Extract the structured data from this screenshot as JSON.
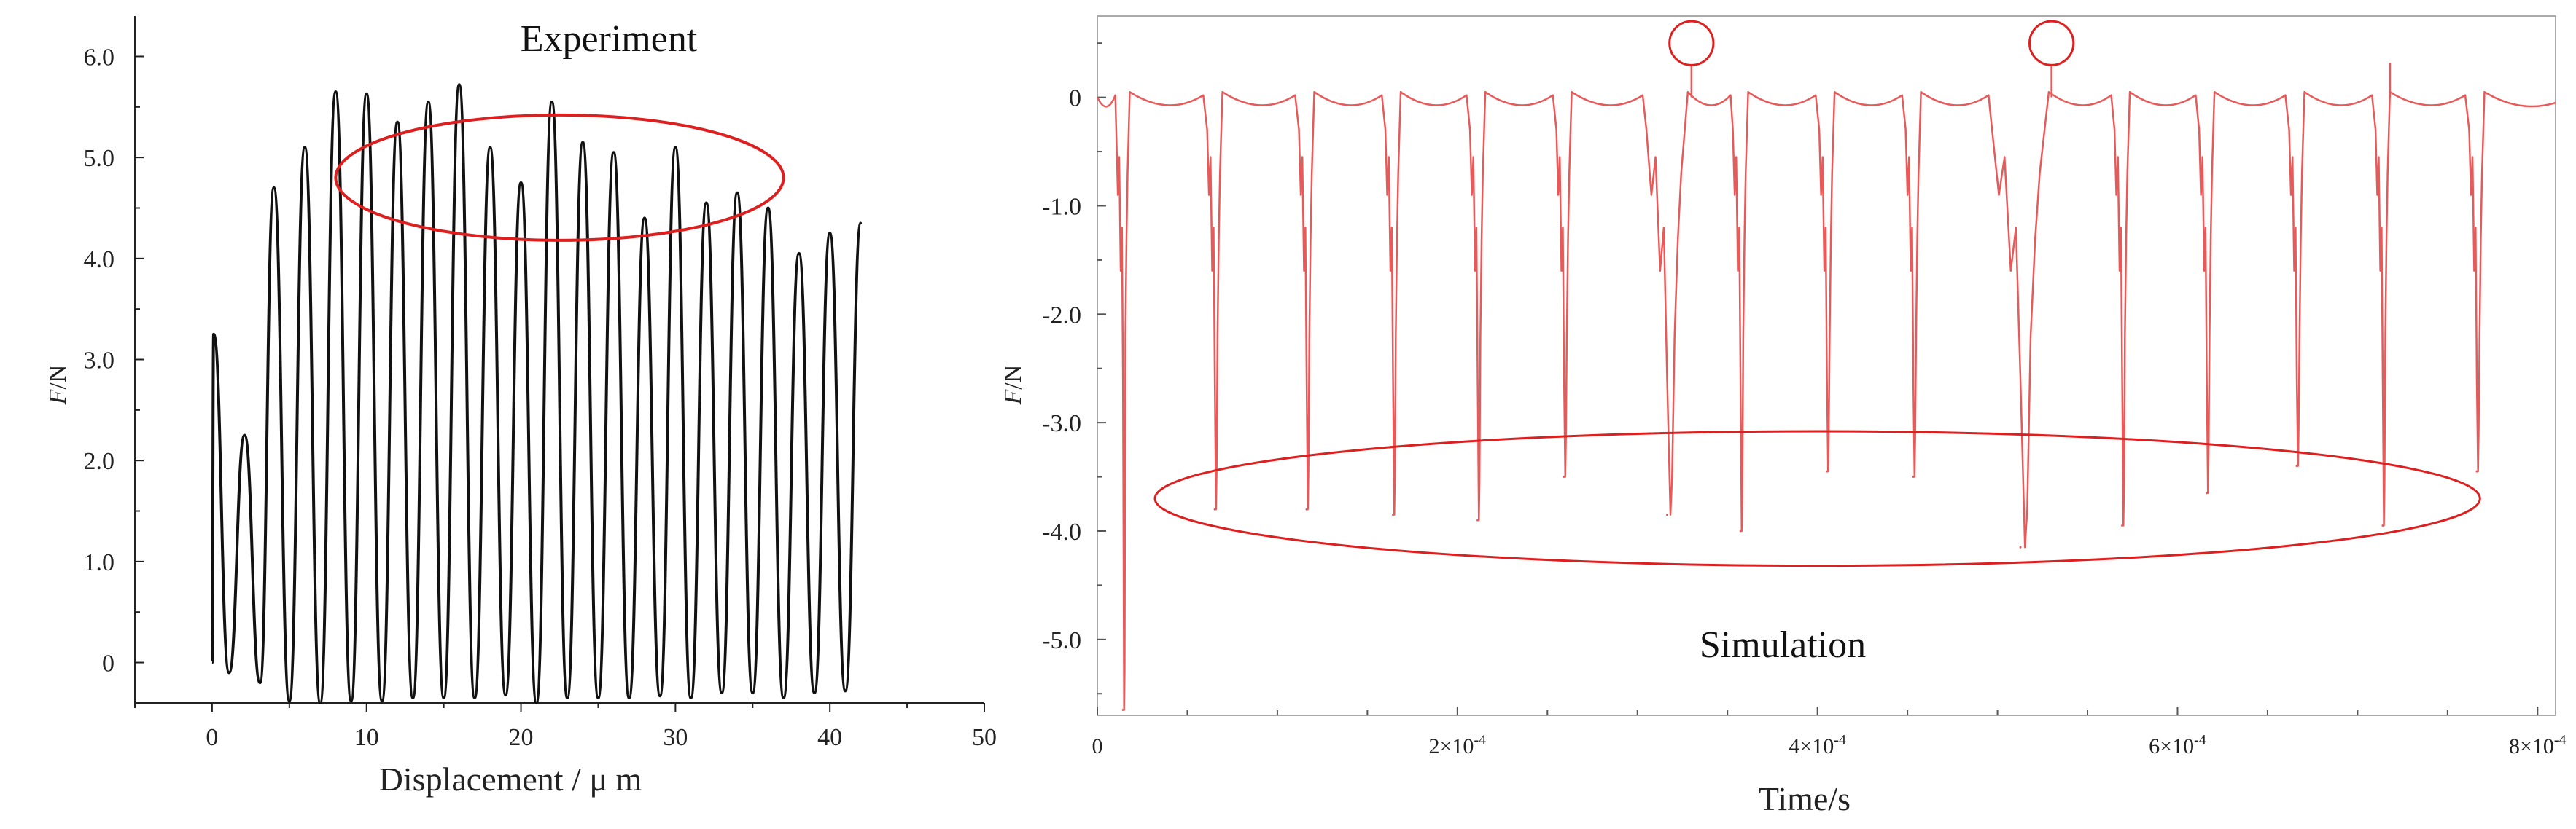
{
  "chart_data": [
    {
      "type": "line",
      "title": "Experiment",
      "xlabel": "Displacement / μ m",
      "ylabel_italic": "F",
      "ylabel_unit": "/N",
      "xlim": [
        -5,
        50
      ],
      "ylim": [
        -0.4,
        6.4
      ],
      "x_ticks": [
        0,
        10,
        20,
        30,
        40,
        50
      ],
      "x_tick_labels": [
        "0",
        "10",
        "20",
        "30",
        "40",
        "50"
      ],
      "y_ticks": [
        0,
        1,
        2,
        3,
        4,
        5,
        6
      ],
      "y_tick_labels": [
        "0",
        "1.0",
        "2.0",
        "3.0",
        "4.0",
        "5.0",
        "6.0"
      ],
      "line_color": "#111111",
      "annotation_color": "#dd1f1f",
      "annotations": [
        {
          "shape": "ellipse",
          "cx": 22.5,
          "cy": 4.8,
          "rx": 14.5,
          "ry": 0.62
        }
      ],
      "series": [
        {
          "peaks": [
            {
              "x": 0.1,
              "y": 3.25
            },
            {
              "x": 2.1,
              "y": 2.25
            },
            {
              "x": 4.0,
              "y": 4.7
            },
            {
              "x": 6.0,
              "y": 5.1
            },
            {
              "x": 8.0,
              "y": 5.65
            },
            {
              "x": 10.0,
              "y": 5.63
            },
            {
              "x": 12.0,
              "y": 5.35
            },
            {
              "x": 14.0,
              "y": 5.55
            },
            {
              "x": 16.0,
              "y": 5.72
            },
            {
              "x": 18.0,
              "y": 5.1
            },
            {
              "x": 20.0,
              "y": 4.75
            },
            {
              "x": 22.0,
              "y": 5.55
            },
            {
              "x": 24.0,
              "y": 5.15
            },
            {
              "x": 26.0,
              "y": 5.05
            },
            {
              "x": 28.0,
              "y": 4.4
            },
            {
              "x": 30.0,
              "y": 5.1
            },
            {
              "x": 32.0,
              "y": 4.55
            },
            {
              "x": 34.0,
              "y": 4.65
            },
            {
              "x": 36.0,
              "y": 4.5
            },
            {
              "x": 38.0,
              "y": 4.05
            },
            {
              "x": 40.0,
              "y": 4.25
            },
            {
              "x": 42.0,
              "y": 4.35
            }
          ],
          "valleys": [
            {
              "x": 1.1,
              "y": -0.1
            },
            {
              "x": 3.1,
              "y": -0.2
            },
            {
              "x": 5.0,
              "y": -0.38
            },
            {
              "x": 7.0,
              "y": -0.4
            },
            {
              "x": 9.0,
              "y": -0.38
            },
            {
              "x": 11.0,
              "y": -0.38
            },
            {
              "x": 13.0,
              "y": -0.35
            },
            {
              "x": 15.0,
              "y": -0.35
            },
            {
              "x": 17.0,
              "y": -0.35
            },
            {
              "x": 19.0,
              "y": -0.32
            },
            {
              "x": 21.0,
              "y": -0.4
            },
            {
              "x": 23.0,
              "y": -0.35
            },
            {
              "x": 25.0,
              "y": -0.35
            },
            {
              "x": 27.0,
              "y": -0.35
            },
            {
              "x": 29.0,
              "y": -0.33
            },
            {
              "x": 31.0,
              "y": -0.35
            },
            {
              "x": 33.0,
              "y": -0.3
            },
            {
              "x": 35.0,
              "y": -0.3
            },
            {
              "x": 37.0,
              "y": -0.35
            },
            {
              "x": 39.0,
              "y": -0.3
            },
            {
              "x": 41.0,
              "y": -0.28
            }
          ]
        }
      ]
    },
    {
      "type": "line",
      "title": "Simulation",
      "xlabel": "Time/s",
      "ylabel_italic": "F",
      "ylabel_unit": "/N",
      "xlim": [
        0,
        0.00081
      ],
      "ylim": [
        -5.7,
        0.75
      ],
      "x_ticks": [
        0,
        0.0002,
        0.0004,
        0.0006,
        0.0008
      ],
      "x_tick_labels": [
        {
          "mantissa": "0",
          "exp": ""
        },
        {
          "mantissa": "2×10",
          "exp": "-4"
        },
        {
          "mantissa": "4×10",
          "exp": "-4"
        },
        {
          "mantissa": "6×10",
          "exp": "-4"
        },
        {
          "mantissa": "8×10",
          "exp": "-4"
        }
      ],
      "y_ticks": [
        0,
        -1,
        -2,
        -3,
        -4,
        -5
      ],
      "y_tick_labels": [
        "0",
        "-1.0",
        "-2.0",
        "-3.0",
        "-4.0",
        "-5.0"
      ],
      "line_color": "#e85a5a",
      "annotation_color": "#dd1f1f",
      "annotations": [
        {
          "shape": "ellipse",
          "cx": 0.0004,
          "cy": -3.7,
          "rx": 0.000368,
          "ry": 0.62
        },
        {
          "shape": "circle",
          "cx": 0.00033,
          "cy": 0.5,
          "r_x": 1.22e-05
        },
        {
          "shape": "circle",
          "cx": 0.00053,
          "cy": 0.5,
          "r_x": 1.22e-05
        }
      ],
      "series": [
        {
          "cycles": [
            {
              "drop": 1.05e-05,
              "min": -5.65,
              "rise": 1.8e-05
            },
            {
              "drop": 6.1e-05,
              "min": -3.8,
              "rise": 6.95e-05
            },
            {
              "drop": 0.000112,
              "min": -3.8,
              "rise": 0.0001205
            },
            {
              "drop": 0.00016,
              "min": -3.85,
              "rise": 0.0001685
            },
            {
              "drop": 0.000207,
              "min": -3.9,
              "rise": 0.0002155
            },
            {
              "drop": 0.000255,
              "min": -3.5,
              "rise": 0.0002635
            },
            {
              "drop": 0.000305,
              "min": -3.85,
              "rise": 0.000328
            },
            {
              "drop": 0.000353,
              "min": -4.0,
              "rise": 0.0003615
            },
            {
              "drop": 0.000401,
              "min": -3.45,
              "rise": 0.0004095
            },
            {
              "drop": 0.000449,
              "min": -3.5,
              "rise": 0.0004575
            },
            {
              "drop": 0.000497,
              "min": -4.15,
              "rise": 0.0005285
            },
            {
              "drop": 0.000565,
              "min": -3.95,
              "rise": 0.0005735
            },
            {
              "drop": 0.000612,
              "min": -3.65,
              "rise": 0.0006205
            },
            {
              "drop": 0.000662,
              "min": -3.4,
              "rise": 0.0006705
            },
            {
              "drop": 0.00071,
              "min": -3.95,
              "rise": 0.000718
            },
            {
              "drop": 0.000762,
              "min": -3.45,
              "rise": 0.0007705
            }
          ],
          "spikes": [
            {
              "x": 0.00033,
              "y": 0.3
            },
            {
              "x": 0.00053,
              "y": 0.3
            },
            {
              "x": 0.000718,
              "y": 0.32
            }
          ],
          "end": {
            "x": 0.00081,
            "y": -0.05
          }
        }
      ]
    }
  ]
}
